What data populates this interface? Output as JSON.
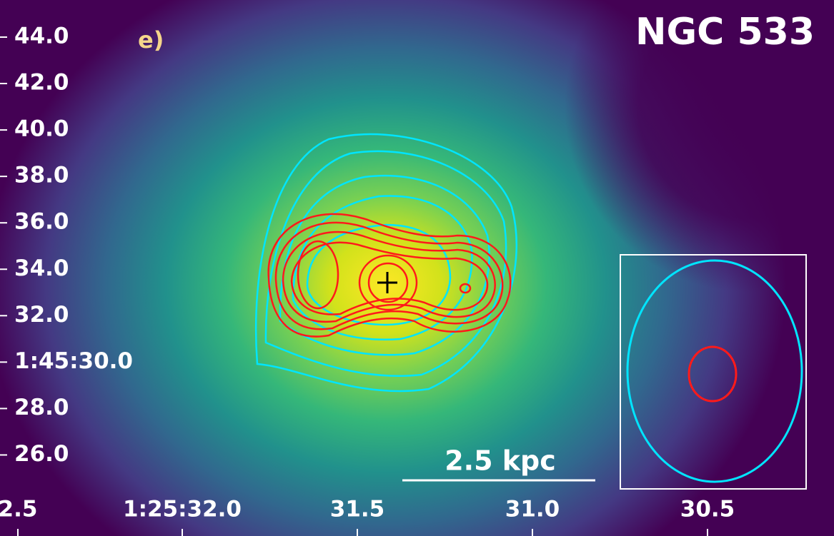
{
  "figure": {
    "title": "NGC 533",
    "panel_label": "e)",
    "scale_bar_label": "2.5 kpc",
    "y_tick_labels": [
      "44.0",
      "42.0",
      "40.0",
      "38.0",
      "36.0",
      "34.0",
      "32.0",
      "1:45:30.0",
      "28.0",
      "26.0"
    ],
    "x_tick_labels": [
      "2.5",
      "1:25:32.0",
      "31.5",
      "31.0",
      "30.5"
    ]
  }
}
